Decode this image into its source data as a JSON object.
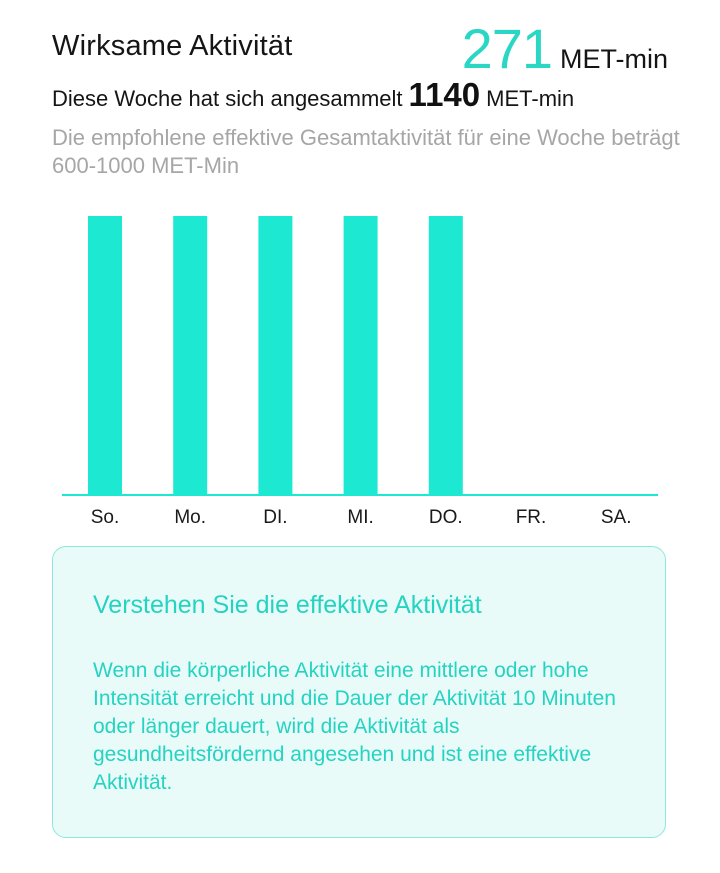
{
  "header": {
    "title": "Wirksame Aktivität",
    "today_value": "271",
    "today_unit": "MET-min"
  },
  "week": {
    "label": "Diese Woche hat sich angesammelt",
    "value": "1140",
    "unit": "MET-min"
  },
  "recommendation": "Die empfohlene effektive Gesamtaktivität für eine Woche beträgt 600-1000 MET-Min",
  "colors": {
    "accent": "#1de9d3",
    "text_accent": "#25d3c1",
    "muted": "#a6a6a6",
    "box_bg": "#e9fbf9",
    "box_border": "#8ee7dd"
  },
  "chart_data": {
    "type": "bar",
    "categories": [
      "So.",
      "Mo.",
      "DI.",
      "MI.",
      "DO.",
      "FR.",
      "SA."
    ],
    "values": [
      1,
      1,
      1,
      1,
      1,
      0,
      0
    ],
    "title": "",
    "xlabel": "",
    "ylabel": "",
    "ylim": [
      0,
      1
    ],
    "grid": false,
    "legend": "none"
  },
  "info": {
    "heading": "Verstehen Sie die effektive Aktivität",
    "body": "Wenn die körperliche Aktivität eine mittlere oder hohe Intensität erreicht und die Dauer der Aktivität 10 Minuten oder länger dauert, wird die Aktivität als gesundheitsfördernd angesehen und ist eine effektive Aktivität."
  }
}
